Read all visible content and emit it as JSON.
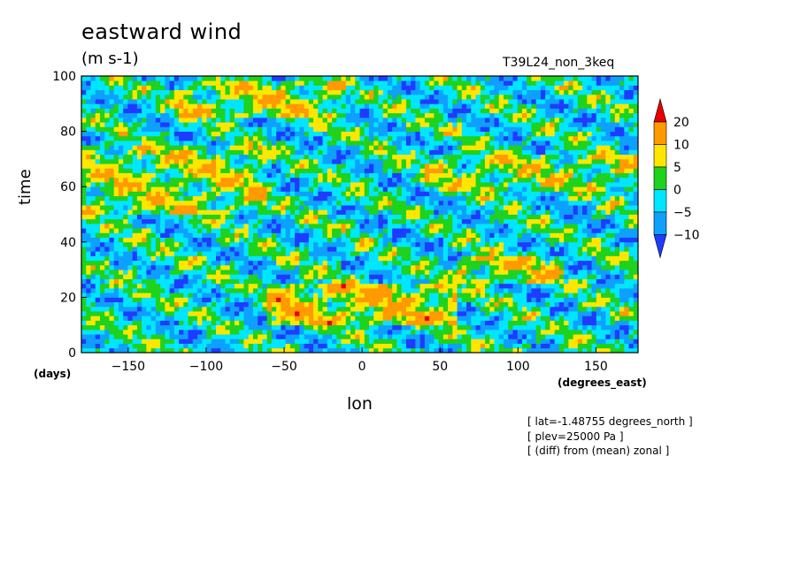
{
  "chart_data": {
    "type": "heatmap",
    "title": "eastward wind",
    "units": "(m s-1)",
    "run_label": "T39L24_non_3keq",
    "xlabel": "lon",
    "ylabel": "time",
    "x_unit": "(degrees_east)",
    "y_unit": "(days)",
    "xlim": [
      -180,
      177
    ],
    "ylim": [
      0,
      100
    ],
    "x_ticks": [
      -150,
      -100,
      -50,
      0,
      50,
      100,
      150
    ],
    "y_ticks": [
      0,
      20,
      40,
      60,
      80,
      100
    ],
    "colorbar": {
      "levels": [
        -10,
        -5,
        0,
        5,
        10,
        20
      ],
      "labels": [
        "20",
        "10",
        "5",
        "0",
        "-5",
        "-10"
      ],
      "colors": [
        "#1e3cff",
        "#0ea0ff",
        "#00e6ff",
        "#1ed21e",
        "#ffe600",
        "#ff9a00",
        "#e60000"
      ],
      "extend": "both"
    },
    "field_description_values": {
      "bands": [
        {
          "lon_start": -180,
          "lon_end": -60,
          "t_start": 50,
          "t_end": 75,
          "value": 8
        },
        {
          "lon_start": -120,
          "lon_end": -10,
          "t_start": 85,
          "t_end": 99,
          "value": 9
        },
        {
          "lon_start": 40,
          "lon_end": 177,
          "t_start": 58,
          "t_end": 72,
          "value": 7
        },
        {
          "lon_start": -60,
          "lon_end": 60,
          "t_start": 10,
          "t_end": 25,
          "value": 12
        },
        {
          "lon_start": 60,
          "lon_end": 130,
          "t_start": 25,
          "t_end": 35,
          "value": 10
        }
      ]
    },
    "notes": [
      "[ lat=-1.48755 degrees_north ]",
      "[ plev=25000 Pa ]",
      "[ (diff) from (mean) zonal ]"
    ]
  }
}
